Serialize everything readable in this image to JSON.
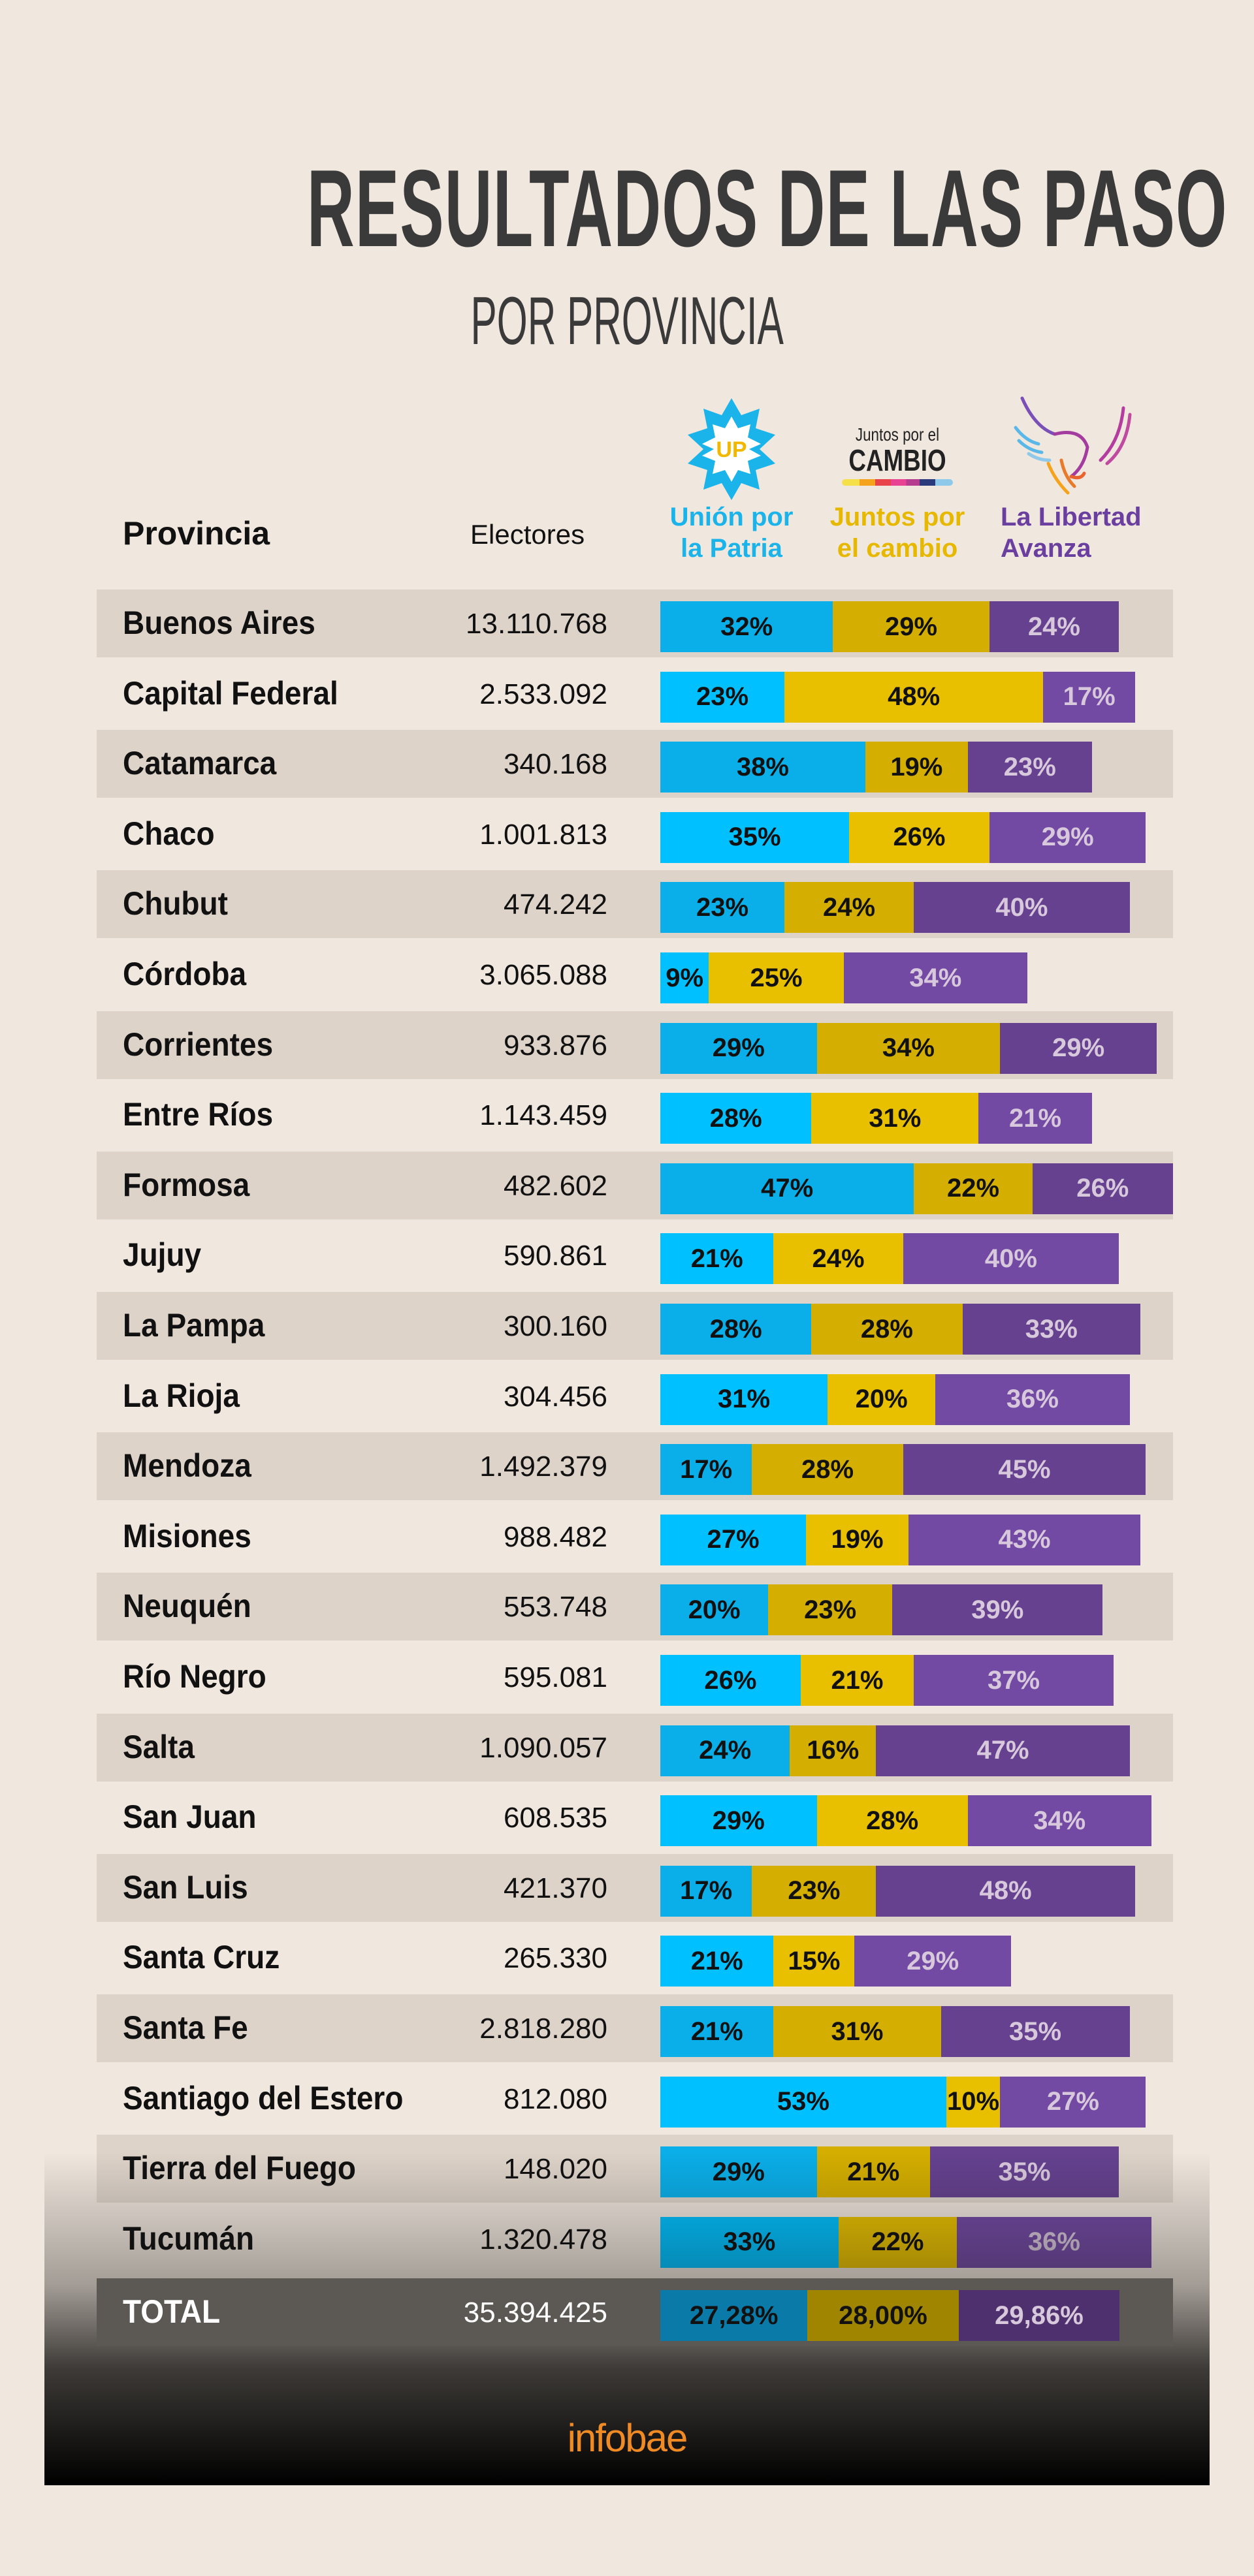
{
  "title": "RESULTADOS DE LAS PASO",
  "subtitle": "POR PROVINCIA",
  "logos": {
    "up_text": "UP",
    "jxc_top": "Juntos por el",
    "jxc_main": "CAMBIO"
  },
  "header": {
    "provincia": "Provincia",
    "electores": "Electores",
    "parties": [
      {
        "line1": "Unión por",
        "line2": "la Patria",
        "color": "#1ab4ea"
      },
      {
        "line1": "Juntos por",
        "line2": "el cambio",
        "color": "#e6b800"
      },
      {
        "line1": "La Libertad",
        "line2": "Avanza",
        "color": "#6b3fa0"
      }
    ]
  },
  "colors": {
    "background": "#f0e7de",
    "band": "#ddd3c9",
    "up": [
      "#0aaee8",
      "#00c0ff"
    ],
    "jxc": [
      "#d4ae00",
      "#e8c000"
    ],
    "lla": [
      "#65418f",
      "#7249a3"
    ],
    "total": [
      "#0a7aa8",
      "#a08600",
      "#4e306e"
    ],
    "lla_text": "#d8c8dc",
    "brand": "#f08a24"
  },
  "chart_data": {
    "type": "bar",
    "stacked": true,
    "orientation": "horizontal",
    "series_names": [
      "Unión por la Patria",
      "Juntos por el cambio",
      "La Libertad Avanza"
    ],
    "rows": [
      {
        "provincia": "Buenos Aires",
        "electores": "13.110.768",
        "values": [
          32,
          29,
          24
        ],
        "labels": [
          "32%",
          "29%",
          "24%"
        ]
      },
      {
        "provincia": "Capital Federal",
        "electores": "2.533.092",
        "values": [
          23,
          48,
          17
        ],
        "labels": [
          "23%",
          "48%",
          "17%"
        ]
      },
      {
        "provincia": "Catamarca",
        "electores": "340.168",
        "values": [
          38,
          19,
          23
        ],
        "labels": [
          "38%",
          "19%",
          "23%"
        ]
      },
      {
        "provincia": "Chaco",
        "electores": "1.001.813",
        "values": [
          35,
          26,
          29
        ],
        "labels": [
          "35%",
          "26%",
          "29%"
        ]
      },
      {
        "provincia": "Chubut",
        "electores": "474.242",
        "values": [
          23,
          24,
          40
        ],
        "labels": [
          "23%",
          "24%",
          "40%"
        ]
      },
      {
        "provincia": "Córdoba",
        "electores": "3.065.088",
        "values": [
          9,
          25,
          34
        ],
        "labels": [
          "9%",
          "25%",
          "34%"
        ]
      },
      {
        "provincia": "Corrientes",
        "electores": "933.876",
        "values": [
          29,
          34,
          29
        ],
        "labels": [
          "29%",
          "34%",
          "29%"
        ]
      },
      {
        "provincia": "Entre Ríos",
        "electores": "1.143.459",
        "values": [
          28,
          31,
          21
        ],
        "labels": [
          "28%",
          "31%",
          "21%"
        ]
      },
      {
        "provincia": "Formosa",
        "electores": "482.602",
        "values": [
          47,
          22,
          26
        ],
        "labels": [
          "47%",
          "22%",
          "26%"
        ]
      },
      {
        "provincia": "Jujuy",
        "electores": "590.861",
        "values": [
          21,
          24,
          40
        ],
        "labels": [
          "21%",
          "24%",
          "40%"
        ]
      },
      {
        "provincia": "La Pampa",
        "electores": "300.160",
        "values": [
          28,
          28,
          33
        ],
        "labels": [
          "28%",
          "28%",
          "33%"
        ]
      },
      {
        "provincia": "La Rioja",
        "electores": "304.456",
        "values": [
          31,
          20,
          36
        ],
        "labels": [
          "31%",
          "20%",
          "36%"
        ]
      },
      {
        "provincia": "Mendoza",
        "electores": "1.492.379",
        "values": [
          17,
          28,
          45
        ],
        "labels": [
          "17%",
          "28%",
          "45%"
        ]
      },
      {
        "provincia": "Misiones",
        "electores": "988.482",
        "values": [
          27,
          19,
          43
        ],
        "labels": [
          "27%",
          "19%",
          "43%"
        ]
      },
      {
        "provincia": "Neuquén",
        "electores": "553.748",
        "values": [
          20,
          23,
          39
        ],
        "labels": [
          "20%",
          "23%",
          "39%"
        ]
      },
      {
        "provincia": "Río Negro",
        "electores": "595.081",
        "values": [
          26,
          21,
          37
        ],
        "labels": [
          "26%",
          "21%",
          "37%"
        ]
      },
      {
        "provincia": "Salta",
        "electores": "1.090.057",
        "values": [
          24,
          16,
          47
        ],
        "labels": [
          "24%",
          "16%",
          "47%"
        ]
      },
      {
        "provincia": "San Juan",
        "electores": "608.535",
        "values": [
          29,
          28,
          34
        ],
        "labels": [
          "29%",
          "28%",
          "34%"
        ]
      },
      {
        "provincia": "San Luis",
        "electores": "421.370",
        "values": [
          17,
          23,
          48
        ],
        "labels": [
          "17%",
          "23%",
          "48%"
        ]
      },
      {
        "provincia": "Santa Cruz",
        "electores": "265.330",
        "values": [
          21,
          15,
          29
        ],
        "labels": [
          "21%",
          "15%",
          "29%"
        ]
      },
      {
        "provincia": "Santa Fe",
        "electores": "2.818.280",
        "values": [
          21,
          31,
          35
        ],
        "labels": [
          "21%",
          "31%",
          "35%"
        ]
      },
      {
        "provincia": "Santiago del Estero",
        "electores": "812.080",
        "values": [
          53,
          10,
          27
        ],
        "labels": [
          "53%",
          "10%",
          "27%"
        ]
      },
      {
        "provincia": "Tierra del Fuego",
        "electores": "148.020",
        "values": [
          29,
          21,
          35
        ],
        "labels": [
          "29%",
          "21%",
          "35%"
        ]
      },
      {
        "provincia": "Tucumán",
        "electores": "1.320.478",
        "values": [
          33,
          22,
          36
        ],
        "labels": [
          "33%",
          "22%",
          "36%"
        ]
      }
    ],
    "total": {
      "provincia": "TOTAL",
      "electores": "35.394.425",
      "values": [
        27.28,
        28.0,
        29.86
      ],
      "labels": [
        "27,28%",
        "28,00%",
        "29,86%"
      ]
    }
  },
  "footer": {
    "brand": "infobae"
  }
}
